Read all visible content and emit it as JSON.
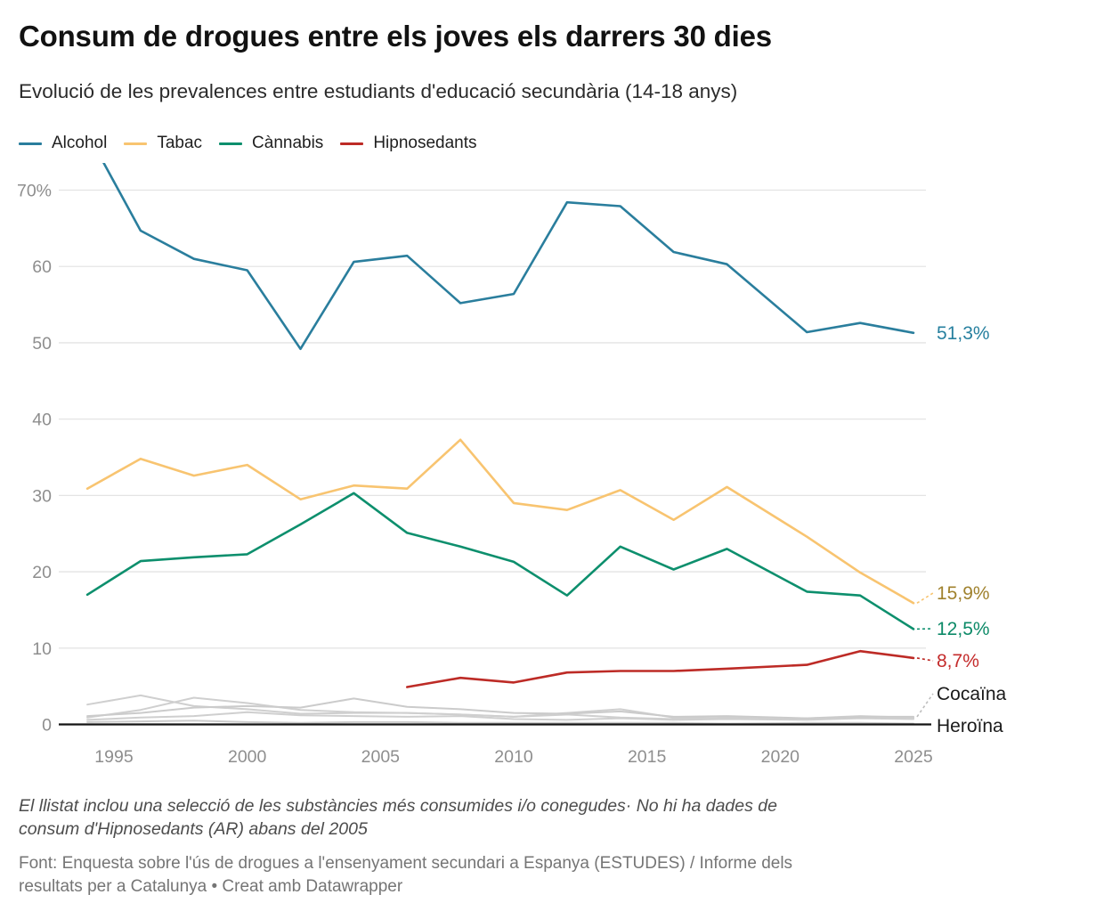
{
  "header": {
    "title": "Consum de drogues entre els joves els darrers 30 dies",
    "subtitle": "Evolució de les prevalences entre estudiants d'educació secundària (14-18 anys)"
  },
  "notes": {
    "footnote": "El llistat inclou una selecció de les substàncies més consumides i/o conegudes· No hi ha dades de consum d'Hipnosedants (AR) abans del 2005",
    "source": "Font: Enquesta sobre l'ús de drogues a l'ensenyament secundari a Espanya (ESTUDES) / Informe dels resultats per a Catalunya • Creat amb Datawrapper"
  },
  "chart_data": {
    "type": "line",
    "x_label": "",
    "y_label": "",
    "x": [
      1994,
      1996,
      1998,
      2000,
      2002,
      2004,
      2006,
      2008,
      2010,
      2012,
      2014,
      2016,
      2018,
      2021,
      2023,
      2025
    ],
    "x_ticks": [
      {
        "v": 1995,
        "label": "1995"
      },
      {
        "v": 2000,
        "label": "2000"
      },
      {
        "v": 2005,
        "label": "2005"
      },
      {
        "v": 2010,
        "label": "2010"
      },
      {
        "v": 2015,
        "label": "2015"
      },
      {
        "v": 2020,
        "label": "2020"
      },
      {
        "v": 2025,
        "label": "2025"
      }
    ],
    "y_ticks": [
      {
        "v": 0,
        "label": "0"
      },
      {
        "v": 10,
        "label": "10"
      },
      {
        "v": 20,
        "label": "20"
      },
      {
        "v": 30,
        "label": "30"
      },
      {
        "v": 40,
        "label": "40"
      },
      {
        "v": 50,
        "label": "50"
      },
      {
        "v": 60,
        "label": "60"
      },
      {
        "v": 70,
        "label": "70%"
      }
    ],
    "ylim": [
      0,
      73.3
    ],
    "grid": true,
    "legend_position": "top",
    "series": [
      {
        "name": "Alcohol",
        "in_legend": true,
        "color": "#2a7e9d",
        "label_color": "#27809f",
        "end_label": "51,3%",
        "values": [
          77.5,
          64.7,
          61.0,
          59.5,
          49.2,
          60.6,
          61.4,
          55.2,
          56.4,
          68.4,
          67.9,
          61.9,
          60.3,
          51.4,
          52.6,
          51.3
        ]
      },
      {
        "name": "Tabac",
        "in_legend": true,
        "color": "#f8c470",
        "label_color": "#a0822e",
        "end_label": "15,9%",
        "values": [
          30.9,
          34.8,
          32.6,
          34.0,
          29.5,
          31.3,
          30.9,
          37.3,
          29.0,
          28.1,
          30.7,
          26.8,
          31.1,
          24.6,
          19.9,
          15.9
        ]
      },
      {
        "name": "Cànnabis",
        "in_legend": true,
        "color": "#0d8f6d",
        "label_color": "#0d8a68",
        "end_label": "12,5%",
        "values": [
          17.0,
          21.4,
          21.9,
          22.3,
          26.2,
          30.3,
          25.1,
          23.3,
          21.3,
          16.9,
          23.3,
          20.3,
          23.0,
          17.4,
          16.9,
          12.5
        ]
      },
      {
        "name": "Hipnosedants",
        "in_legend": true,
        "color": "#bd2b26",
        "label_color": "#c42b2b",
        "end_label": "8,7%",
        "values": [
          null,
          null,
          null,
          null,
          null,
          null,
          4.9,
          6.1,
          5.5,
          6.8,
          7.0,
          7.0,
          7.3,
          7.8,
          9.6,
          8.7
        ]
      },
      {
        "name": "Cocaïna",
        "in_legend": false,
        "color": "#cbcbcb",
        "label_color": "#1a1a1a",
        "end_label": "Cocaïna",
        "values": [
          1.1,
          1.5,
          2.2,
          2.4,
          2.2,
          3.4,
          2.3,
          2.0,
          1.5,
          1.4,
          1.7,
          1.0,
          1.1,
          0.8,
          1.0,
          1.0
        ]
      },
      {
        "name": "Heroïna",
        "in_legend": false,
        "color": "#cbcbcb",
        "label_color": "#1a1a1a",
        "end_label": "Heroïna",
        "values": [
          0.3,
          0.4,
          0.5,
          0.3,
          0.2,
          0.3,
          0.3,
          0.2,
          0.2,
          0.2,
          0.2,
          0.2,
          0.1,
          0.2,
          0.2,
          0.1
        ]
      },
      {
        "name": "",
        "in_legend": false,
        "color": "#cfcfcf",
        "label_color": null,
        "end_label": null,
        "values": [
          2.6,
          3.8,
          2.4,
          2.0,
          1.4,
          1.5,
          1.5,
          1.3,
          1.0,
          1.3,
          0.9,
          0.7,
          0.9,
          0.8,
          1.1,
          0.9
        ]
      },
      {
        "name": "",
        "in_legend": false,
        "color": "#cfcfcf",
        "label_color": null,
        "end_label": null,
        "values": [
          0.9,
          1.9,
          3.5,
          2.8,
          1.9,
          1.6,
          1.5,
          1.3,
          1.0,
          1.5,
          2.0,
          0.9,
          0.8,
          0.7,
          0.9,
          0.8
        ]
      },
      {
        "name": "",
        "in_legend": false,
        "color": "#cfcfcf",
        "label_color": null,
        "end_label": null,
        "values": [
          0.6,
          0.9,
          1.1,
          1.6,
          1.2,
          1.1,
          1.0,
          1.1,
          0.7,
          0.6,
          0.8,
          0.6,
          0.7,
          0.6,
          0.8,
          0.7
        ]
      }
    ],
    "colors": {
      "gridline": "#e4e4e4",
      "axis": "#141414",
      "tick_text": "#8e8e8e"
    }
  }
}
